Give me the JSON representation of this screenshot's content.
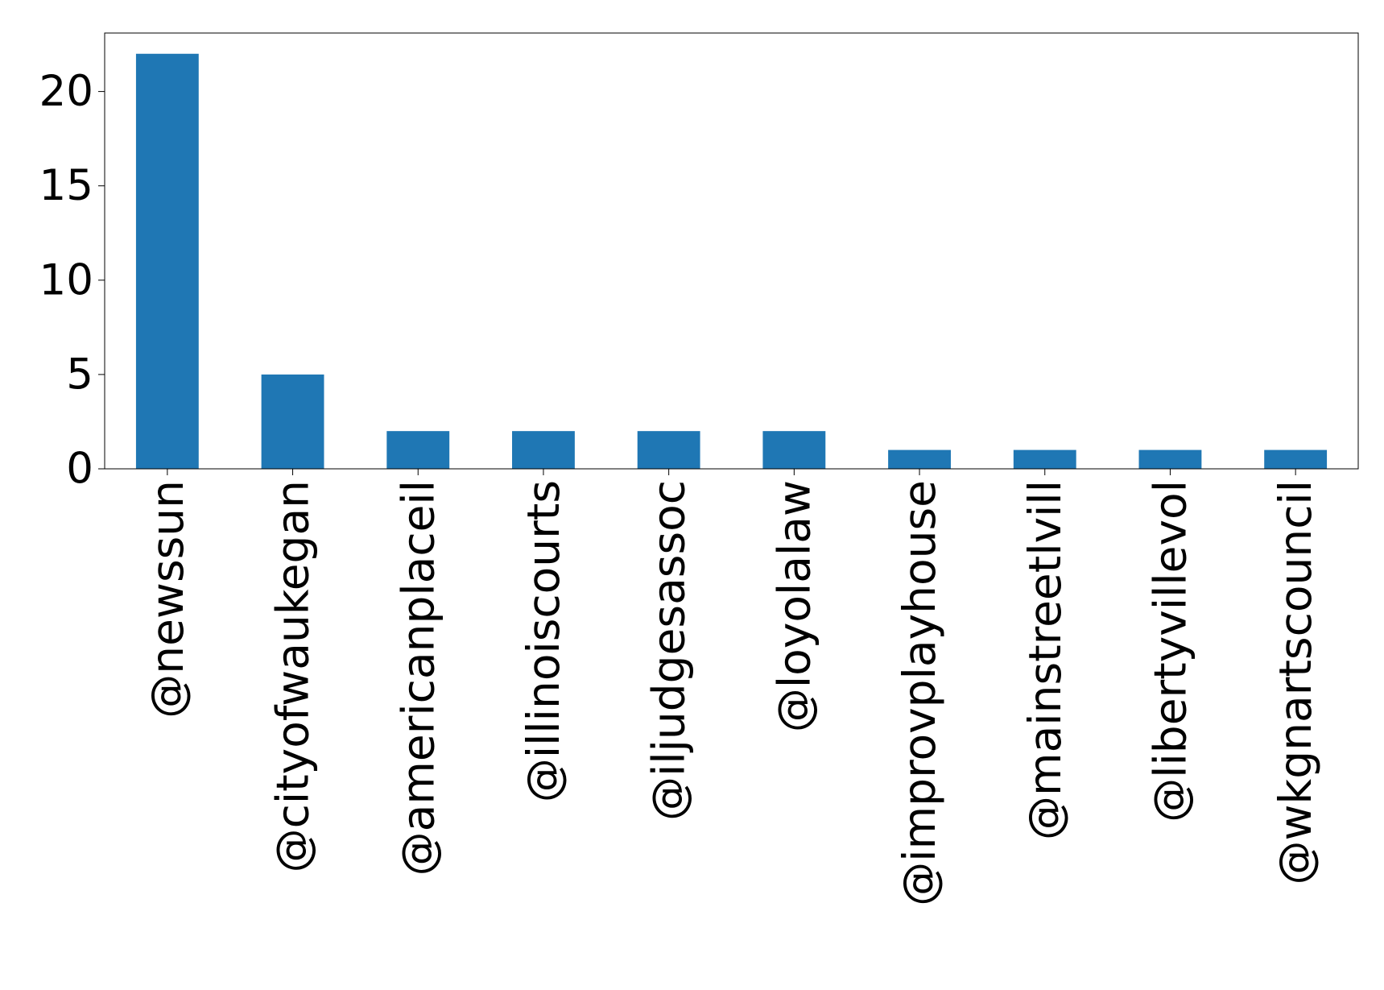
{
  "chart_data": {
    "type": "bar",
    "categories": [
      "@newssun",
      "@cityofwaukegan",
      "@americanplaceil",
      "@illinoiscourts",
      "@iljudgesassoc",
      "@loyolalaw",
      "@improvplayhouse",
      "@mainstreetlvill",
      "@libertyvillevol",
      "@wkgnartscouncil"
    ],
    "values": [
      22,
      5,
      2,
      2,
      2,
      2,
      1,
      1,
      1,
      1
    ],
    "color": "#1f77b4",
    "ylim": [
      0,
      23.1
    ],
    "yticks": [
      0,
      5,
      10,
      15,
      20
    ],
    "grid": false
  }
}
